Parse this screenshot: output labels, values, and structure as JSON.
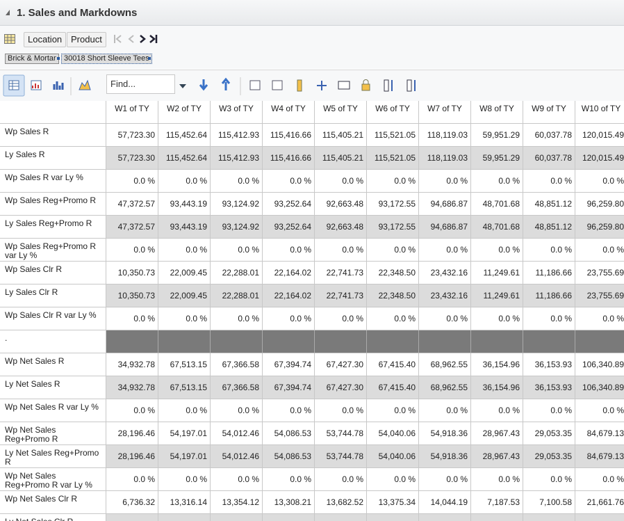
{
  "header": {
    "title": "1. Sales and Markdowns"
  },
  "toolbar": {
    "buttons": [
      "Location",
      "Product"
    ]
  },
  "breadcrumb": [
    "Brick & Mortar",
    "30018 Short Sleeve Tees"
  ],
  "find": {
    "placeholder": "Find..."
  },
  "table": {
    "columns": [
      "W1 of TY",
      "W2 of TY",
      "W3 of TY",
      "W4 of TY",
      "W5 of TY",
      "W6 of TY",
      "W7 of TY",
      "W8 of TY",
      "W9 of TY",
      "W10 of TY"
    ],
    "rows": [
      {
        "label": "Wp Sales R",
        "values": [
          "57,723.30",
          "115,452.64",
          "115,412.93",
          "115,416.66",
          "115,405.21",
          "115,521.05",
          "118,119.03",
          "59,951.29",
          "60,037.78",
          "120,015.49"
        ]
      },
      {
        "label": "Ly Sales R",
        "values": [
          "57,723.30",
          "115,452.64",
          "115,412.93",
          "115,416.66",
          "115,405.21",
          "115,521.05",
          "118,119.03",
          "59,951.29",
          "60,037.78",
          "120,015.49"
        ]
      },
      {
        "label": "Wp Sales R var Ly %",
        "values": [
          "0.0 %",
          "0.0 %",
          "0.0 %",
          "0.0 %",
          "0.0 %",
          "0.0 %",
          "0.0 %",
          "0.0 %",
          "0.0 %",
          "0.0 %"
        ]
      },
      {
        "label": "Wp Sales Reg+Promo R",
        "values": [
          "47,372.57",
          "93,443.19",
          "93,124.92",
          "93,252.64",
          "92,663.48",
          "93,172.55",
          "94,686.87",
          "48,701.68",
          "48,851.12",
          "96,259.80"
        ]
      },
      {
        "label": "Ly Sales Reg+Promo R",
        "values": [
          "47,372.57",
          "93,443.19",
          "93,124.92",
          "93,252.64",
          "92,663.48",
          "93,172.55",
          "94,686.87",
          "48,701.68",
          "48,851.12",
          "96,259.80"
        ]
      },
      {
        "label": "Wp Sales Reg+Promo R var Ly %",
        "values": [
          "0.0 %",
          "0.0 %",
          "0.0 %",
          "0.0 %",
          "0.0 %",
          "0.0 %",
          "0.0 %",
          "0.0 %",
          "0.0 %",
          "0.0 %"
        ]
      },
      {
        "label": "Wp Sales Clr R",
        "values": [
          "10,350.73",
          "22,009.45",
          "22,288.01",
          "22,164.02",
          "22,741.73",
          "22,348.50",
          "23,432.16",
          "11,249.61",
          "11,186.66",
          "23,755.69"
        ]
      },
      {
        "label": "Ly Sales Clr R",
        "values": [
          "10,350.73",
          "22,009.45",
          "22,288.01",
          "22,164.02",
          "22,741.73",
          "22,348.50",
          "23,432.16",
          "11,249.61",
          "11,186.66",
          "23,755.69"
        ]
      },
      {
        "label": "Wp Sales Clr R var Ly %",
        "values": [
          "0.0 %",
          "0.0 %",
          "0.0 %",
          "0.0 %",
          "0.0 %",
          "0.0 %",
          "0.0 %",
          "0.0 %",
          "0.0 %",
          "0.0 %"
        ]
      },
      {
        "label": "."
      },
      {
        "label": "Wp Net Sales R",
        "values": [
          "34,932.78",
          "67,513.15",
          "67,366.58",
          "67,394.74",
          "67,427.30",
          "67,415.40",
          "68,962.55",
          "36,154.96",
          "36,153.93",
          "106,340.89"
        ]
      },
      {
        "label": "Ly Net Sales R",
        "values": [
          "34,932.78",
          "67,513.15",
          "67,366.58",
          "67,394.74",
          "67,427.30",
          "67,415.40",
          "68,962.55",
          "36,154.96",
          "36,153.93",
          "106,340.89"
        ]
      },
      {
        "label": "Wp Net Sales R var Ly %",
        "values": [
          "0.0 %",
          "0.0 %",
          "0.0 %",
          "0.0 %",
          "0.0 %",
          "0.0 %",
          "0.0 %",
          "0.0 %",
          "0.0 %",
          "0.0 %"
        ]
      },
      {
        "label": "Wp Net Sales Reg+Promo R",
        "values": [
          "28,196.46",
          "54,197.01",
          "54,012.46",
          "54,086.53",
          "53,744.78",
          "54,040.06",
          "54,918.36",
          "28,967.43",
          "29,053.35",
          "84,679.13"
        ]
      },
      {
        "label": "Ly Net Sales Reg+Promo R",
        "values": [
          "28,196.46",
          "54,197.01",
          "54,012.46",
          "54,086.53",
          "53,744.78",
          "54,040.06",
          "54,918.36",
          "28,967.43",
          "29,053.35",
          "84,679.13"
        ]
      },
      {
        "label": "Wp Net Sales Reg+Promo R var Ly %",
        "values": [
          "0.0 %",
          "0.0 %",
          "0.0 %",
          "0.0 %",
          "0.0 %",
          "0.0 %",
          "0.0 %",
          "0.0 %",
          "0.0 %",
          "0.0 %"
        ]
      },
      {
        "label": "Wp Net Sales Clr R",
        "values": [
          "6,736.32",
          "13,316.14",
          "13,354.12",
          "13,308.21",
          "13,682.52",
          "13,375.34",
          "14,044.19",
          "7,187.53",
          "7,100.58",
          "21,661.76"
        ]
      },
      {
        "label": "Ly Net Sales Clr R"
      }
    ]
  }
}
